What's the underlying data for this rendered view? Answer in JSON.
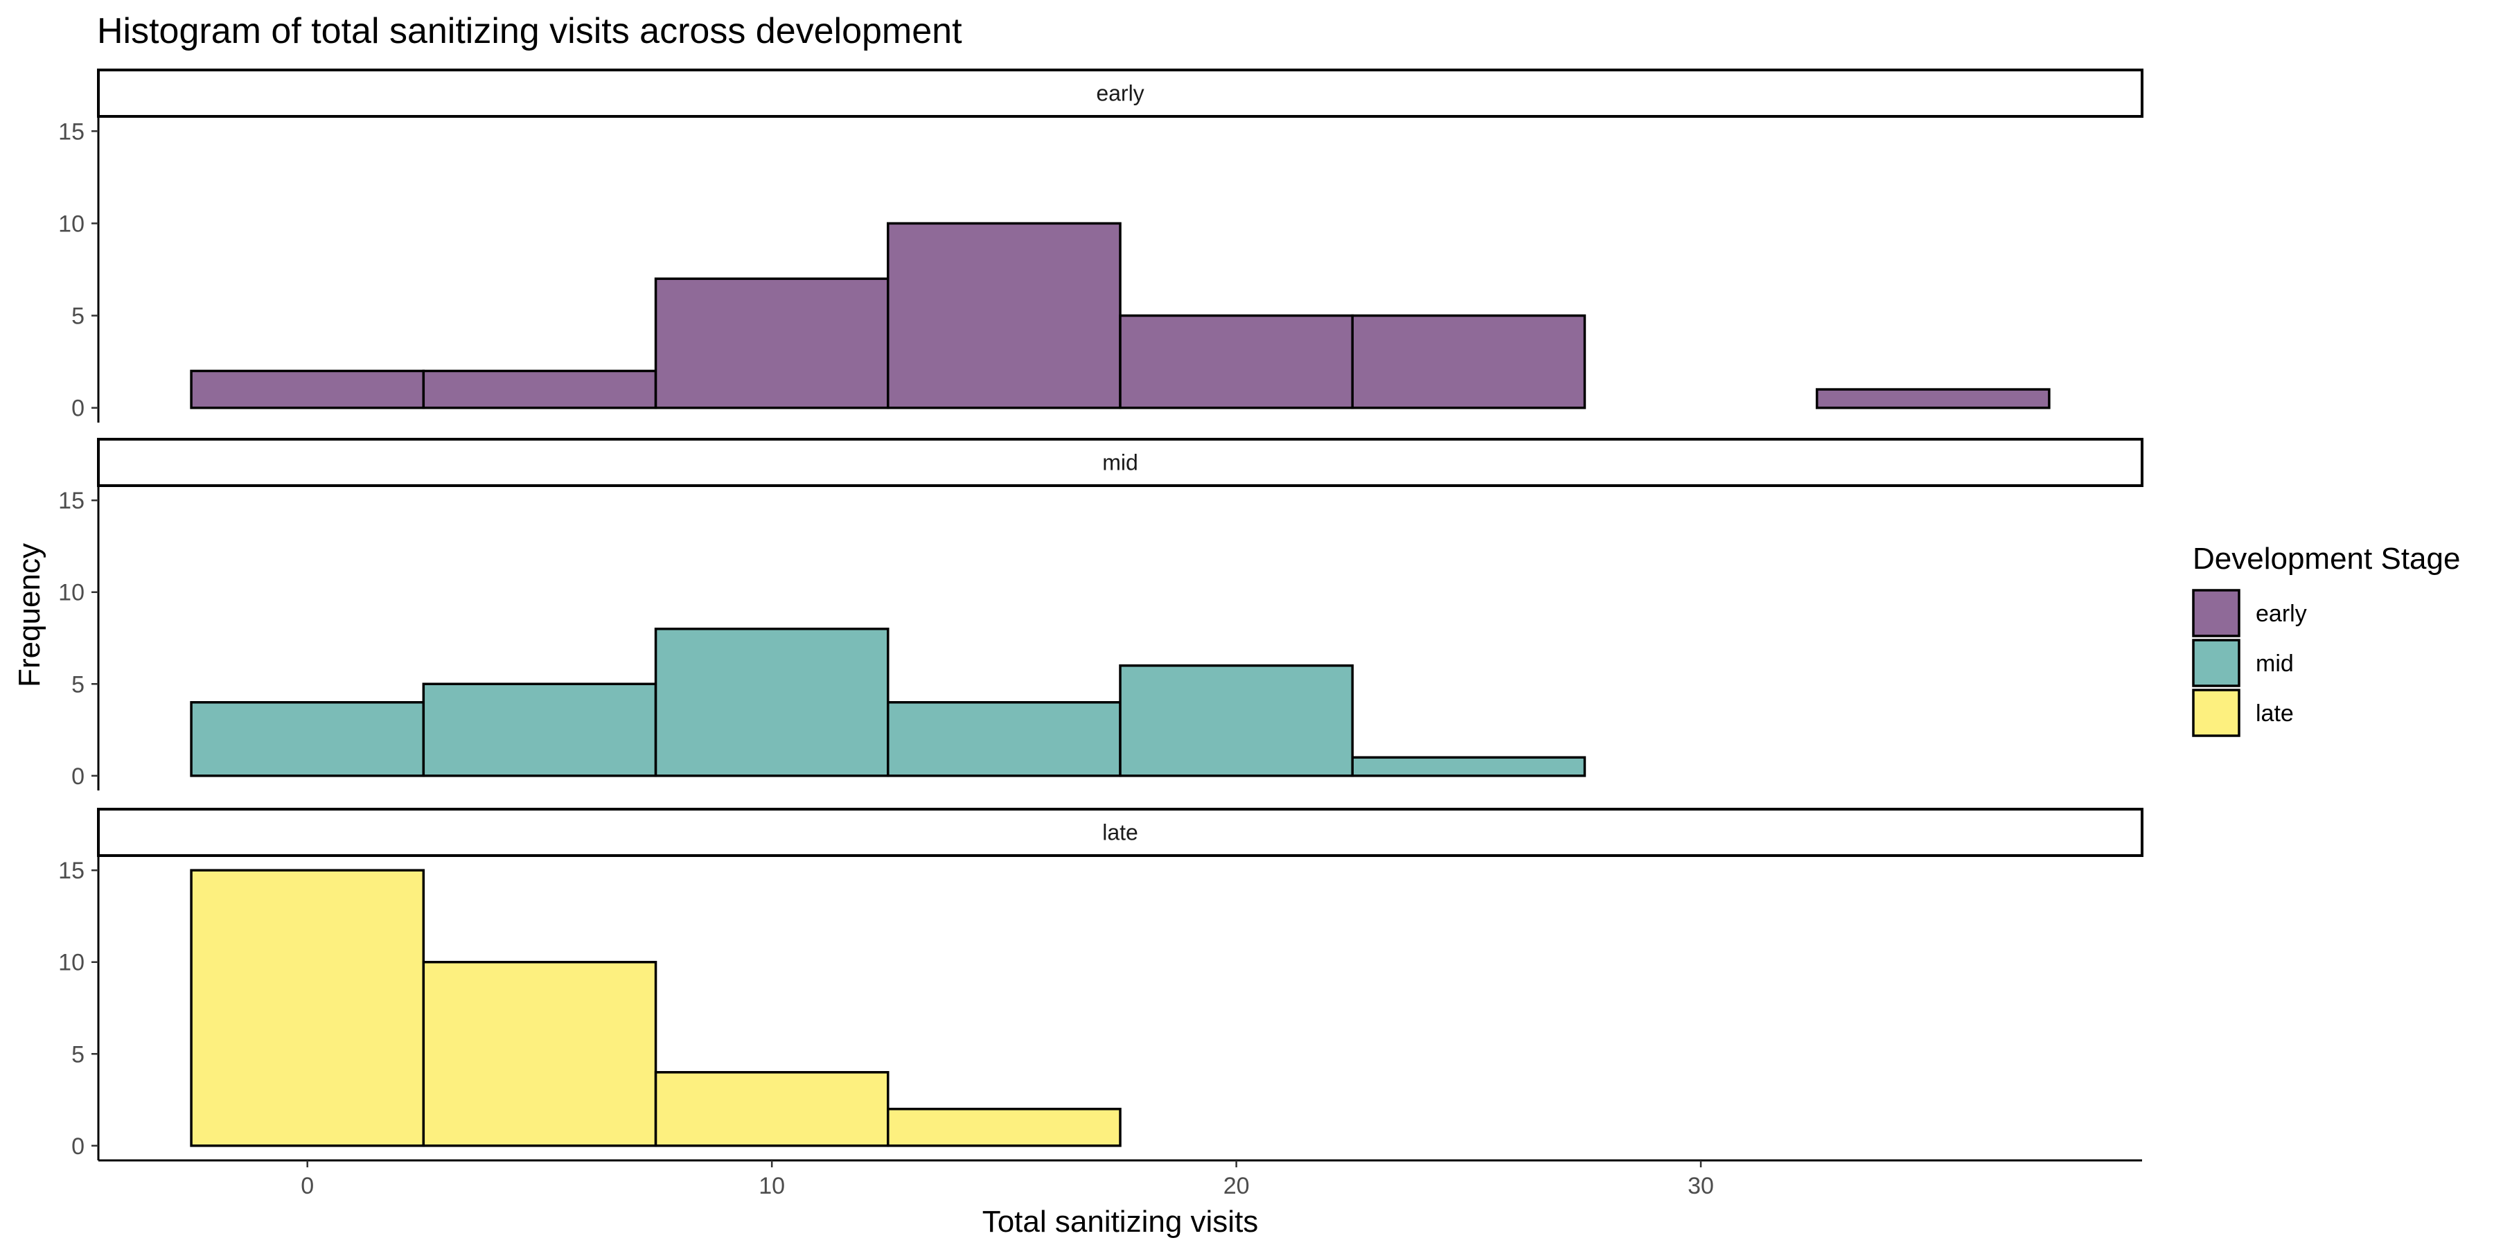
{
  "chart_data": {
    "type": "bar",
    "subtype": "histogram-faceted",
    "title": "Histogram of total sanitizing visits across development",
    "xlabel": "Total sanitizing visits",
    "ylabel": "Frequency",
    "xlim": [
      -4.5,
      39.5
    ],
    "xticks": [
      0,
      10,
      20,
      30
    ],
    "ylim": [
      -0.8,
      15.8
    ],
    "yticks": [
      0,
      5,
      10,
      15
    ],
    "bin_width": 5,
    "bin_edges": [
      -2.5,
      2.5,
      7.5,
      12.5,
      17.5,
      22.5,
      27.5,
      32.5,
      37.5
    ],
    "legend": {
      "title": "Development Stage",
      "position": "right"
    },
    "series": [
      {
        "name": "early",
        "color": "#8F6A98",
        "values": [
          2,
          2,
          7,
          10,
          5,
          5,
          0,
          1
        ]
      },
      {
        "name": "mid",
        "color": "#7BBCB7",
        "values": [
          4,
          5,
          8,
          4,
          6,
          1,
          0,
          0
        ]
      },
      {
        "name": "late",
        "color": "#FDF07F",
        "values": [
          15,
          10,
          4,
          2,
          0,
          0,
          0,
          0
        ]
      }
    ]
  }
}
